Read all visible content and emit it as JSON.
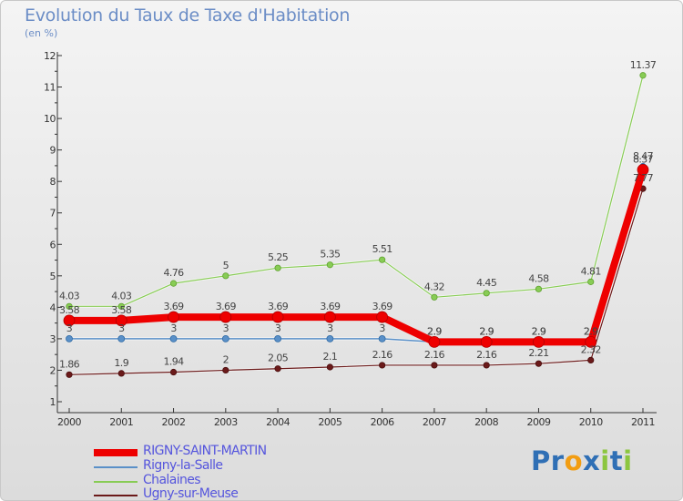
{
  "header": {
    "title": "Evolution du Taux de Taxe d'Habitation",
    "unit": "(en %)"
  },
  "chart_data": {
    "type": "line",
    "x": [
      "2000",
      "2001",
      "2002",
      "2003",
      "2004",
      "2005",
      "2006",
      "2007",
      "2008",
      "2009",
      "2010",
      "2011"
    ],
    "y_ticks": [
      "1",
      "2",
      "3",
      "4",
      "5",
      "6",
      "7",
      "8",
      "9",
      "10",
      "11",
      "12"
    ],
    "ylim": [
      1,
      12
    ],
    "grid": false,
    "legend_position": "bottom-left",
    "series": [
      {
        "name": "Chalaines",
        "color": "#88cc55",
        "values": [
          4.03,
          4.03,
          4.76,
          5,
          5.25,
          5.35,
          5.51,
          4.32,
          4.45,
          4.58,
          4.81,
          11.37
        ],
        "labels": [
          "4.03",
          "4.03",
          "4.76",
          "5",
          "5.25",
          "5.35",
          "5.51",
          "4.32",
          "4.45",
          "4.58",
          "4.81",
          "11.37"
        ]
      },
      {
        "name": "Ugny-sur-Meuse",
        "color": "#6b1a1a",
        "values": [
          1.86,
          1.9,
          1.94,
          2,
          2.05,
          2.1,
          2.16,
          2.16,
          2.16,
          2.21,
          2.32,
          7.77
        ],
        "labels": [
          "1.86",
          "1.9",
          "1.94",
          "2",
          "2.05",
          "2.1",
          "2.16",
          "2.16",
          "2.16",
          "2.21",
          "2.32",
          "7.77"
        ]
      },
      {
        "name": "Rigny-la-Salle",
        "color": "#5a90c8",
        "values": [
          3,
          3,
          3,
          3,
          3,
          3,
          3,
          2.9,
          2.9,
          2.9,
          2.9,
          8.47
        ],
        "labels": [
          "3",
          "3",
          "3",
          "3",
          "3",
          "3",
          "3",
          "2.9",
          "2.9",
          "2.9",
          "2.9",
          "8.47"
        ]
      },
      {
        "name": "RIGNY-SAINT-MARTIN",
        "color": "#ee0000",
        "values": [
          3.58,
          3.58,
          3.69,
          3.69,
          3.69,
          3.69,
          3.69,
          2.9,
          2.9,
          2.9,
          2.9,
          8.37
        ],
        "labels": [
          "3.58",
          "3.58",
          "3.69",
          "3.69",
          "3.69",
          "3.69",
          "3.69",
          "2.9",
          "2.9",
          "2.9",
          "2.9",
          "8.37"
        ]
      }
    ]
  },
  "legend": [
    {
      "name": "RIGNY-SAINT-MARTIN",
      "color": "#ee0000",
      "text_color": "#5555dd"
    },
    {
      "name": "Rigny-la-Salle",
      "color": "#5a90c8",
      "text_color": "#5555dd"
    },
    {
      "name": "Chalaines",
      "color": "#88cc55",
      "text_color": "#5555dd"
    },
    {
      "name": "Ugny-sur-Meuse",
      "color": "#6b1a1a",
      "text_color": "#5555dd"
    }
  ],
  "logo": {
    "letters": [
      "P",
      "r",
      "o",
      "x",
      "i",
      "t",
      "i"
    ],
    "colors": [
      "#2f6fb5",
      "#2f6fb5",
      "#f29d12",
      "#2f6fb5",
      "#8cc63f",
      "#2f6fb5",
      "#8cc63f"
    ]
  }
}
